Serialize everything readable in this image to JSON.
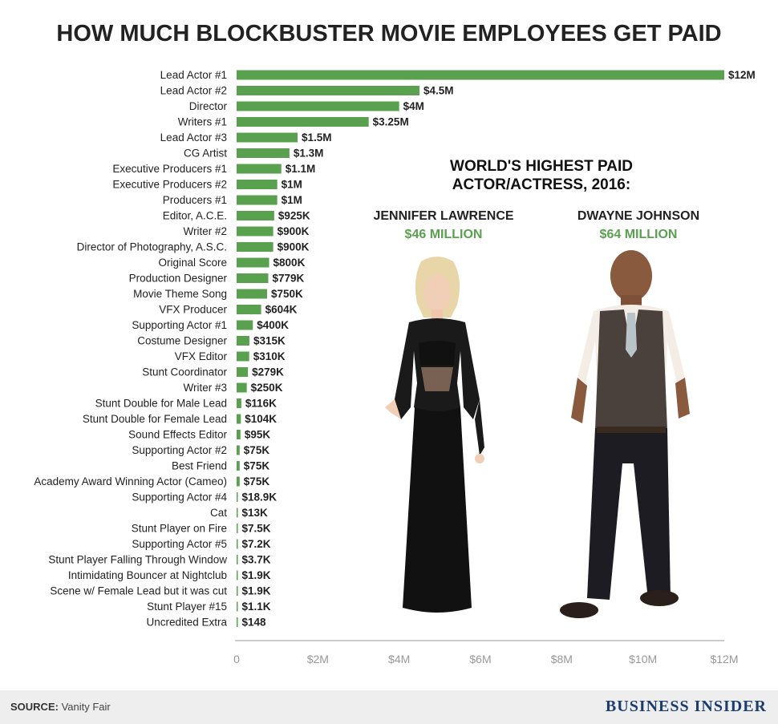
{
  "title": "HOW MUCH BLOCKBUSTER MOVIE EMPLOYEES GET PAID",
  "inset": {
    "heading_line1": "WORLD'S HIGHEST PAID",
    "heading_line2": "ACTOR/ACTRESS, 2016:",
    "people": [
      {
        "name": "JENNIFER LAWRENCE",
        "amount": "$46 MILLION"
      },
      {
        "name": "DWAYNE JOHNSON",
        "amount": "$64 MILLION"
      }
    ]
  },
  "footer": {
    "source_label": "SOURCE:",
    "source_value": "Vanity Fair",
    "brand": "BUSINESS INSIDER"
  },
  "colors": {
    "bar": "#59a14f",
    "accent_text": "#59a14f",
    "brand": "#1c3d6e",
    "footer_bg": "#eeeeee"
  },
  "chart_data": {
    "type": "bar",
    "orientation": "horizontal",
    "title": "HOW MUCH BLOCKBUSTER MOVIE EMPLOYEES GET PAID",
    "xlim": [
      0,
      12000000
    ],
    "xticks": [
      {
        "value": 0,
        "label": "0"
      },
      {
        "value": 2000000,
        "label": "$2M"
      },
      {
        "value": 4000000,
        "label": "$4M"
      },
      {
        "value": 6000000,
        "label": "$6M"
      },
      {
        "value": 8000000,
        "label": "$8M"
      },
      {
        "value": 10000000,
        "label": "$10M"
      },
      {
        "value": 12000000,
        "label": "$12M"
      }
    ],
    "grid": false,
    "bars": [
      {
        "category": "Lead Actor #1",
        "value": 12000000,
        "label": "$12M"
      },
      {
        "category": "Lead Actor #2",
        "value": 4500000,
        "label": "$4.5M"
      },
      {
        "category": "Director",
        "value": 4000000,
        "label": "$4M"
      },
      {
        "category": "Writers #1",
        "value": 3250000,
        "label": "$3.25M"
      },
      {
        "category": "Lead Actor #3",
        "value": 1500000,
        "label": "$1.5M"
      },
      {
        "category": "CG Artist",
        "value": 1300000,
        "label": "$1.3M"
      },
      {
        "category": "Executive Producers #1",
        "value": 1100000,
        "label": "$1.1M"
      },
      {
        "category": "Executive Producers #2",
        "value": 1000000,
        "label": "$1M"
      },
      {
        "category": "Producers #1",
        "value": 1000000,
        "label": "$1M"
      },
      {
        "category": "Editor, A.C.E.",
        "value": 925000,
        "label": "$925K"
      },
      {
        "category": "Writer #2",
        "value": 900000,
        "label": "$900K"
      },
      {
        "category": "Director of Photography, A.S.C.",
        "value": 900000,
        "label": "$900K"
      },
      {
        "category": "Original Score",
        "value": 800000,
        "label": "$800K"
      },
      {
        "category": "Production Designer",
        "value": 779000,
        "label": "$779K"
      },
      {
        "category": "Movie Theme Song",
        "value": 750000,
        "label": "$750K"
      },
      {
        "category": "VFX Producer",
        "value": 604000,
        "label": "$604K"
      },
      {
        "category": "Supporting Actor #1",
        "value": 400000,
        "label": "$400K"
      },
      {
        "category": "Costume Designer",
        "value": 315000,
        "label": "$315K"
      },
      {
        "category": "VFX Editor",
        "value": 310000,
        "label": "$310K"
      },
      {
        "category": "Stunt Coordinator",
        "value": 279000,
        "label": "$279K"
      },
      {
        "category": "Writer #3",
        "value": 250000,
        "label": "$250K"
      },
      {
        "category": "Stunt Double for Male Lead",
        "value": 116000,
        "label": "$116K"
      },
      {
        "category": "Stunt Double for Female Lead",
        "value": 104000,
        "label": "$104K"
      },
      {
        "category": "Sound Effects Editor",
        "value": 95000,
        "label": "$95K"
      },
      {
        "category": "Supporting Actor #2",
        "value": 75000,
        "label": "$75K"
      },
      {
        "category": "Best Friend",
        "value": 75000,
        "label": "$75K"
      },
      {
        "category": "Academy Award Winning Actor (Cameo)",
        "value": 75000,
        "label": "$75K"
      },
      {
        "category": "Supporting Actor #4",
        "value": 18900,
        "label": "$18.9K"
      },
      {
        "category": "Cat",
        "value": 13000,
        "label": "$13K"
      },
      {
        "category": "Stunt Player on Fire",
        "value": 7500,
        "label": "$7.5K"
      },
      {
        "category": "Supporting Actor #5",
        "value": 7200,
        "label": "$7.2K"
      },
      {
        "category": "Stunt Player Falling Through Window",
        "value": 3700,
        "label": "$3.7K"
      },
      {
        "category": "Intimidating Bouncer at Nightclub",
        "value": 1900,
        "label": "$1.9K"
      },
      {
        "category": "Scene w/ Female Lead but it was cut",
        "value": 1900,
        "label": "$1.9K"
      },
      {
        "category": "Stunt Player #15",
        "value": 1100,
        "label": "$1.1K"
      },
      {
        "category": "Uncredited Extra",
        "value": 148,
        "label": "$148"
      }
    ]
  }
}
